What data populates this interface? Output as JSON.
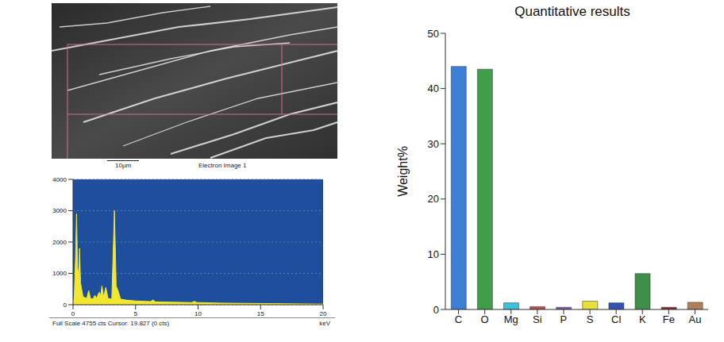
{
  "chart_data": [
    {
      "type": "bar",
      "title": "Quantitative results",
      "y_label": "Weight%",
      "categories": [
        "C",
        "O",
        "Mg",
        "Si",
        "P",
        "S",
        "Cl",
        "K",
        "Fe",
        "Au"
      ],
      "values": [
        44,
        43.5,
        1.2,
        0.5,
        0.4,
        1.5,
        1.2,
        6.5,
        0.4,
        1.3
      ],
      "colors": [
        "#3b7fd6",
        "#3f9d4c",
        "#3cc2dc",
        "#c0504d",
        "#7b5aa8",
        "#e6df3c",
        "#3552b3",
        "#3e8f4a",
        "#8b2a2a",
        "#b07e5c"
      ],
      "ylim": [
        0,
        50
      ],
      "yticks": [
        0,
        10,
        20,
        30,
        40,
        50
      ],
      "grid": false
    },
    {
      "type": "area",
      "x": [
        0,
        0.1,
        0.2,
        0.28,
        0.36,
        0.45,
        0.52,
        0.6,
        0.8,
        1.1,
        1.25,
        1.4,
        1.6,
        1.74,
        1.9,
        2.02,
        2.12,
        2.2,
        2.31,
        2.45,
        2.62,
        2.8,
        3.1,
        3.31,
        3.45,
        3.6,
        3.8,
        4.2,
        5,
        6.2,
        6.4,
        6.6,
        8,
        9.5,
        9.7,
        9.9,
        12,
        20
      ],
      "values": [
        0,
        300,
        1500,
        2900,
        1200,
        900,
        1800,
        700,
        250,
        200,
        450,
        200,
        180,
        300,
        200,
        350,
        400,
        250,
        600,
        250,
        550,
        200,
        180,
        3000,
        600,
        450,
        180,
        150,
        120,
        100,
        150,
        90,
        80,
        70,
        110,
        70,
        50,
        20
      ],
      "color": "#f2e830",
      "xlim": [
        0,
        20
      ],
      "ylim": [
        0,
        4000
      ],
      "xticks": [
        0,
        5,
        10,
        15,
        20
      ],
      "yticks": [
        0,
        1000,
        2000,
        3000,
        4000
      ],
      "x_label": "keV",
      "caption": "Full Scale 4755 cts Cursor: 19.827 (0 cts)",
      "grid": true
    }
  ],
  "micrograph": {
    "scale_bar": "10µm",
    "caption": "Electron Image 1"
  }
}
